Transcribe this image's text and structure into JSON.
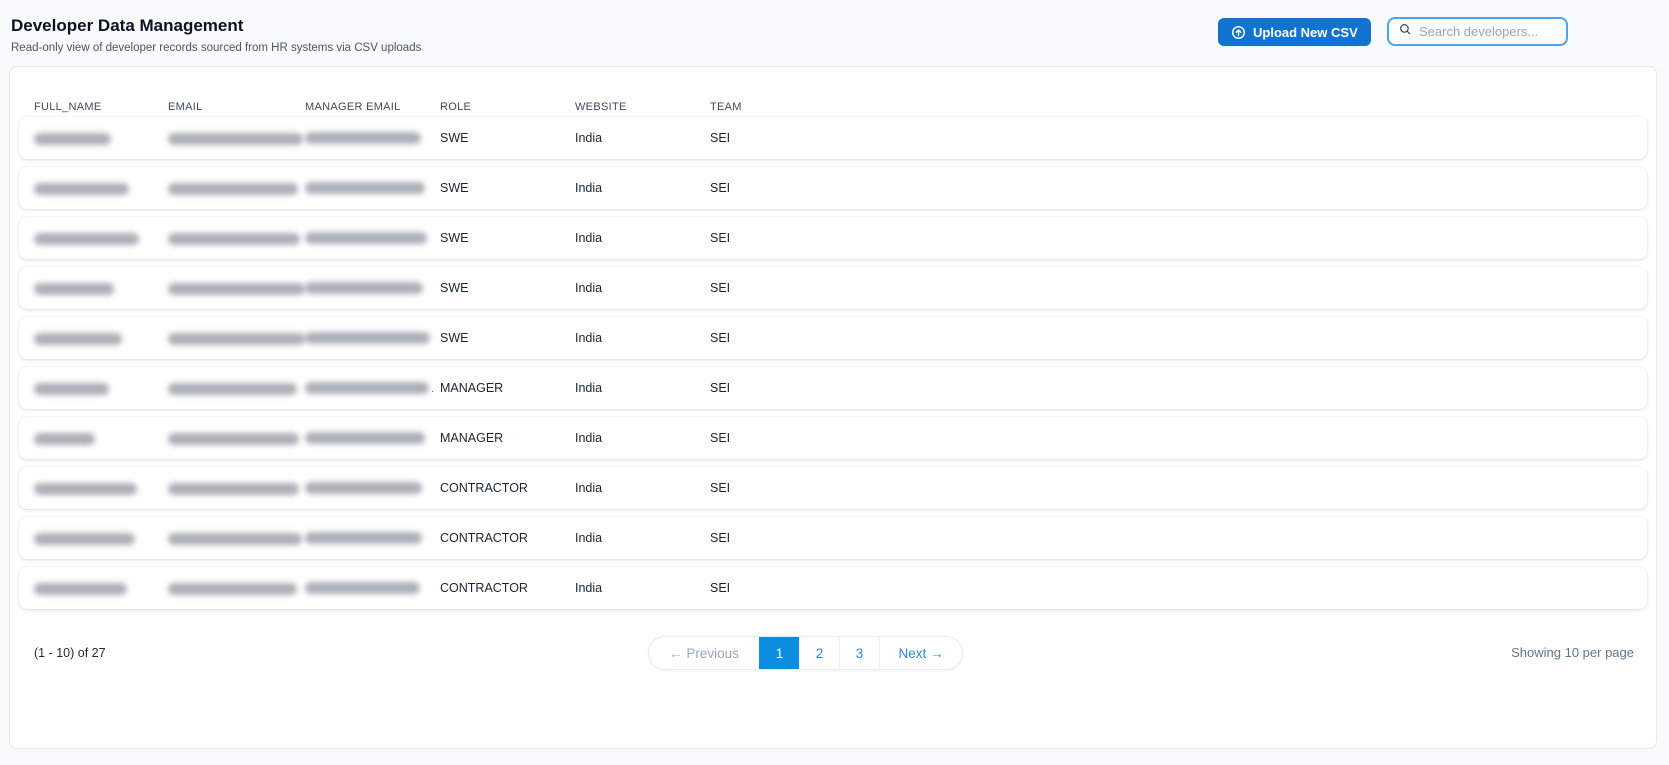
{
  "page": {
    "title": "Developer Data Management",
    "subtitle": "Read-only view of developer records sourced from HR systems via CSV uploads"
  },
  "toolbar": {
    "upload_label": "Upload New CSV",
    "upload_icon": "arrow-up-circle-icon",
    "search_placeholder": "Search developers...",
    "search_icon": "search-icon"
  },
  "table": {
    "columns": [
      "FULL_NAME",
      "EMAIL",
      "MANAGER EMAIL",
      "ROLE",
      "WEBSITE",
      "TEAM"
    ],
    "rows": [
      {
        "full_name_redacted": true,
        "email_redacted": true,
        "manager_email_redacted": true,
        "name_w": 77,
        "email_w": 135,
        "manager_w": 116,
        "manager_suffix": "",
        "role": "SWE",
        "website": "India",
        "team": "SEI"
      },
      {
        "full_name_redacted": true,
        "email_redacted": true,
        "manager_email_redacted": true,
        "name_w": 95,
        "email_w": 130,
        "manager_w": 120,
        "manager_suffix": "",
        "role": "SWE",
        "website": "India",
        "team": "SEI"
      },
      {
        "full_name_redacted": true,
        "email_redacted": true,
        "manager_email_redacted": true,
        "name_w": 105,
        "email_w": 132,
        "manager_w": 122,
        "manager_suffix": "",
        "role": "SWE",
        "website": "India",
        "team": "SEI"
      },
      {
        "full_name_redacted": true,
        "email_redacted": true,
        "manager_email_redacted": true,
        "name_w": 80,
        "email_w": 137,
        "manager_w": 118,
        "manager_suffix": "",
        "role": "SWE",
        "website": "India",
        "team": "SEI"
      },
      {
        "full_name_redacted": true,
        "email_redacted": true,
        "manager_email_redacted": true,
        "name_w": 88,
        "email_w": 137,
        "manager_w": 125,
        "manager_suffix": "",
        "role": "SWE",
        "website": "India",
        "team": "SEI"
      },
      {
        "full_name_redacted": true,
        "email_redacted": true,
        "manager_email_redacted": true,
        "name_w": 75,
        "email_w": 129,
        "manager_w": 124,
        "manager_suffix": ".",
        "role": "MANAGER",
        "website": "India",
        "team": "SEI"
      },
      {
        "full_name_redacted": true,
        "email_redacted": true,
        "manager_email_redacted": true,
        "name_w": 61,
        "email_w": 131,
        "manager_w": 120,
        "manager_suffix": "",
        "role": "MANAGER",
        "website": "India",
        "team": "SEI"
      },
      {
        "full_name_redacted": true,
        "email_redacted": true,
        "manager_email_redacted": true,
        "name_w": 103,
        "email_w": 131,
        "manager_w": 117,
        "manager_suffix": "",
        "role": "CONTRACTOR",
        "website": "India",
        "team": "SEI"
      },
      {
        "full_name_redacted": true,
        "email_redacted": true,
        "manager_email_redacted": true,
        "name_w": 101,
        "email_w": 134,
        "manager_w": 117,
        "manager_suffix": "",
        "role": "CONTRACTOR",
        "website": "India",
        "team": "SEI"
      },
      {
        "full_name_redacted": true,
        "email_redacted": true,
        "manager_email_redacted": true,
        "name_w": 93,
        "email_w": 129,
        "manager_w": 115,
        "manager_suffix": "",
        "role": "CONTRACTOR",
        "website": "India",
        "team": "SEI"
      }
    ]
  },
  "footer": {
    "range_text": "(1 - 10) of 27",
    "per_page_text": "Showing 10 per page",
    "pagination": {
      "previous_label": "← Previous",
      "next_label": "Next →",
      "pages": [
        "1",
        "2",
        "3"
      ],
      "active_page": "1"
    }
  },
  "colors": {
    "accent_blue": "#1272d2",
    "pagination_active_blue": "#0d8de0",
    "link_blue": "#2e86d9",
    "search_border_blue": "#4da3ee",
    "page_background": "#f8fafc",
    "card_border": "#e2e8f0"
  }
}
